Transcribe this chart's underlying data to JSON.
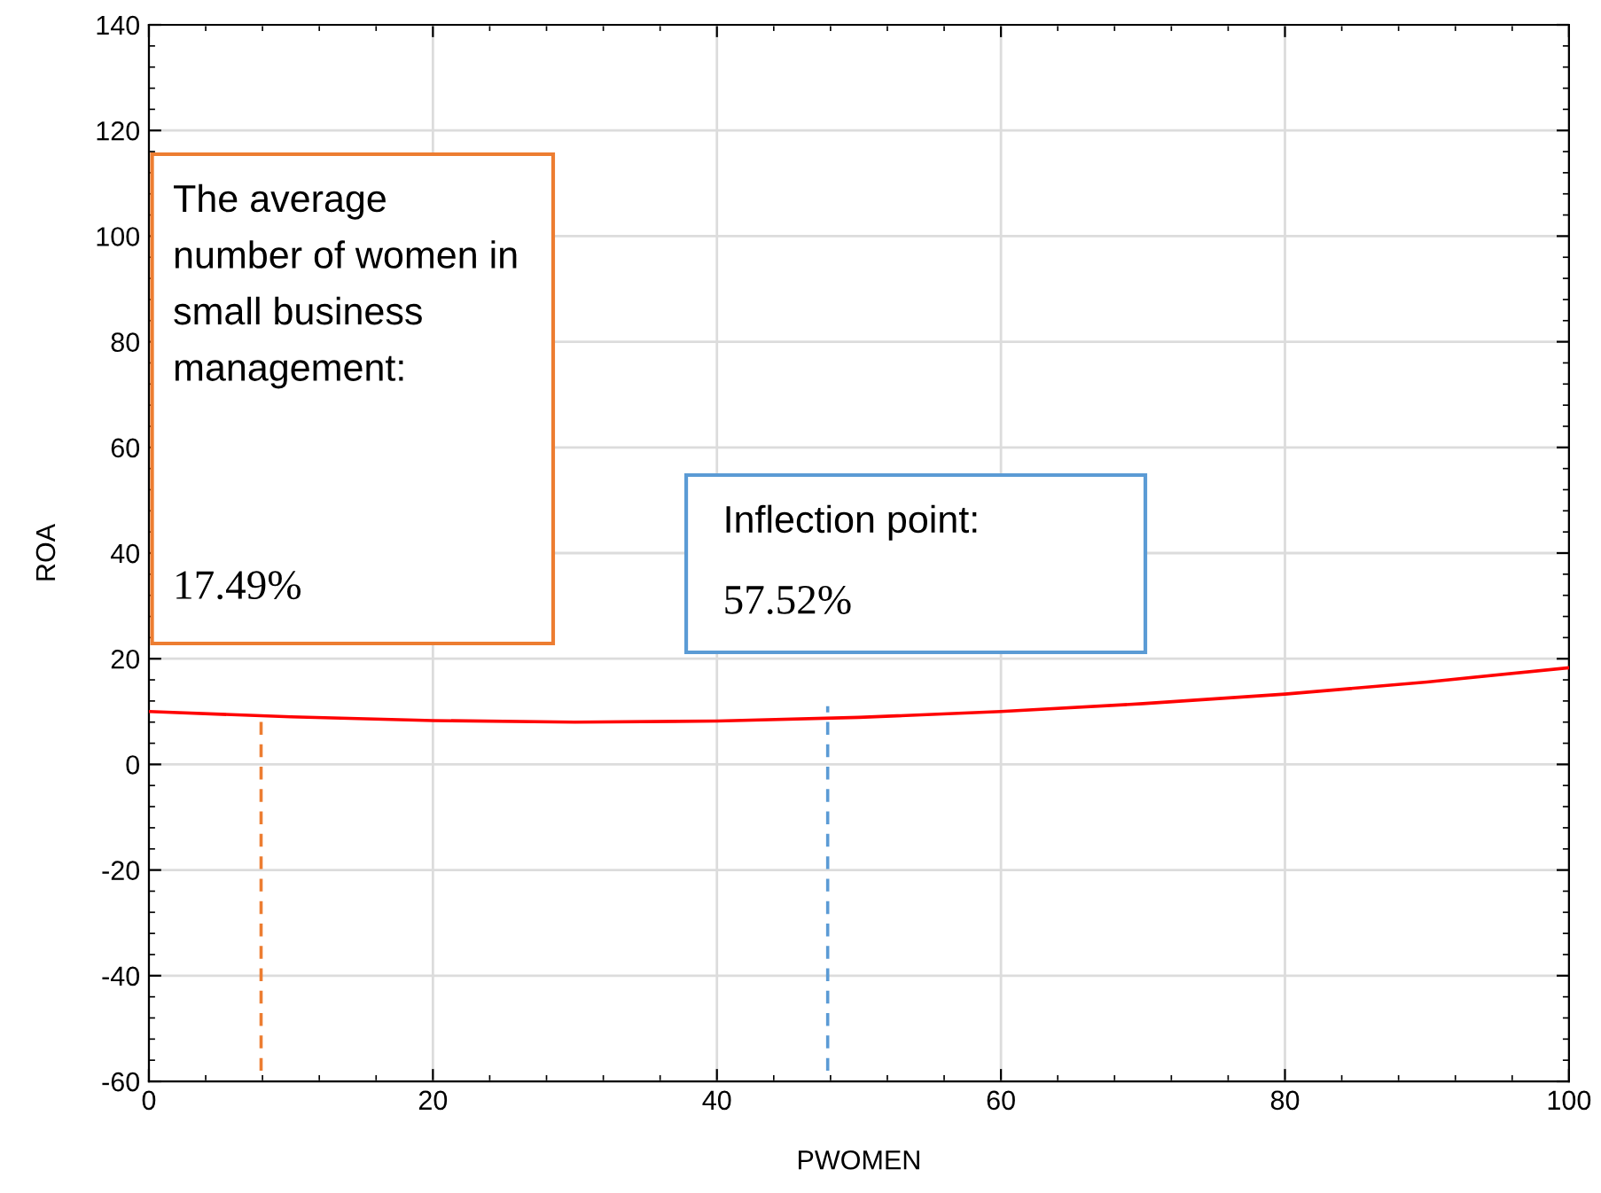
{
  "chart_data": {
    "type": "line",
    "xlabel": "PWOMEN",
    "ylabel": "ROA",
    "series": [
      {
        "color": "#ff0000",
        "x": [
          0,
          10,
          20,
          30,
          40,
          50,
          60,
          70,
          80,
          90,
          100
        ],
        "values": [
          10,
          9.0,
          8.3,
          8.0,
          8.2,
          8.9,
          10.0,
          11.5,
          13.3,
          15.6,
          18.3
        ]
      },
      {
        "color": "#ed7d31",
        "line_style": "dashed",
        "x": [
          7.9,
          7.9
        ],
        "values": [
          -58,
          9.7
        ]
      },
      {
        "color": "#5b9bd5",
        "line_style": "dashed",
        "x": [
          47.8,
          47.8
        ],
        "values": [
          -58,
          11
        ]
      }
    ],
    "annotations": [
      "The average number of women in small business management:",
      "17.49%",
      "Inflection point:",
      "57.52%"
    ],
    "xlim": [
      0,
      100
    ],
    "xticks": [
      0,
      20,
      40,
      60,
      80,
      100
    ],
    "ylim": [
      -60,
      140
    ],
    "yticks": [
      -60,
      -40,
      -20,
      0,
      20,
      40,
      60,
      80,
      100,
      120,
      140
    ],
    "grid": true,
    "marker": "none"
  }
}
